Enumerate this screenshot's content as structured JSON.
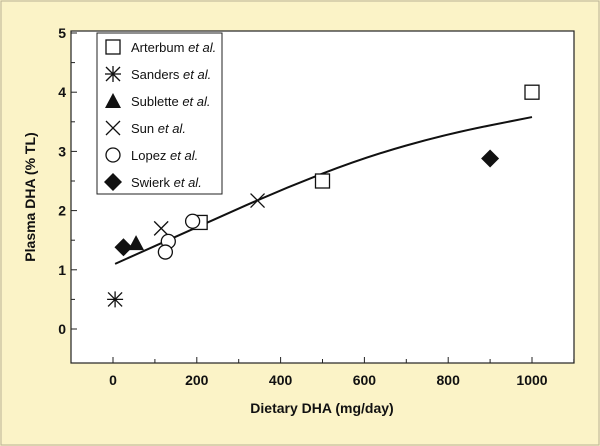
{
  "chart_data": {
    "type": "scatter",
    "xlabel": "Dietary DHA (mg/day)",
    "ylabel": "Plasma DHA (% TL)",
    "xlim": [
      0,
      1000
    ],
    "ylim": [
      0,
      5
    ],
    "xticks": [
      "0",
      "200",
      "400",
      "600",
      "800",
      "1000"
    ],
    "yticks": [
      "0",
      "1",
      "2",
      "3",
      "4",
      "5"
    ],
    "grid": false,
    "legend_position": "top-left",
    "series": [
      {
        "name": "Arterbum",
        "name_suffix": " et al.",
        "marker": "square-open",
        "points": [
          [
            208,
            1.8
          ],
          [
            500,
            2.5
          ],
          [
            1000,
            4.0
          ]
        ]
      },
      {
        "name": "Sanders",
        "name_suffix": " et al.",
        "marker": "asterisk",
        "points": [
          [
            5,
            0.5
          ]
        ]
      },
      {
        "name": "Sublette",
        "name_suffix": " et al.",
        "marker": "triangle-filled",
        "points": [
          [
            55,
            1.45
          ]
        ]
      },
      {
        "name": "Sun",
        "name_suffix": " et al.",
        "marker": "x",
        "points": [
          [
            115,
            1.7
          ],
          [
            345,
            2.17
          ]
        ]
      },
      {
        "name": "Lopez",
        "name_suffix": " et al.",
        "marker": "circle-open",
        "points": [
          [
            190,
            1.82
          ],
          [
            132,
            1.48
          ],
          [
            125,
            1.3
          ]
        ]
      },
      {
        "name": "Swierk",
        "name_suffix": " et al.",
        "marker": "diamond-filled",
        "points": [
          [
            25,
            1.38
          ],
          [
            900,
            2.88
          ]
        ]
      }
    ],
    "fit_line": {
      "points": [
        [
          5,
          1.1
        ],
        [
          200,
          1.72
        ],
        [
          400,
          2.35
        ],
        [
          600,
          2.9
        ],
        [
          800,
          3.3
        ],
        [
          1000,
          3.58
        ]
      ]
    }
  }
}
